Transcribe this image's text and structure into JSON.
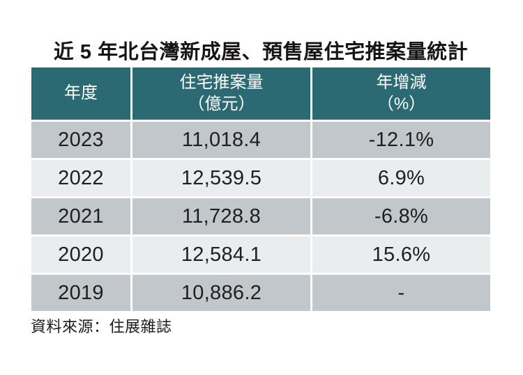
{
  "page": {
    "title": "近 5 年北台灣新成屋、預售屋住宅推案量統計",
    "source": "資料來源：住展雜誌"
  },
  "table": {
    "columns": [
      {
        "line1": "年度",
        "line2": ""
      },
      {
        "line1": "住宅推案量",
        "line2": "（億元）"
      },
      {
        "line1": "年增減",
        "line2": "（%）"
      }
    ],
    "rows": [
      {
        "year": "2023",
        "amount": "11,018.4",
        "change": "-12.1%"
      },
      {
        "year": "2022",
        "amount": "12,539.5",
        "change": "6.9%"
      },
      {
        "year": "2021",
        "amount": "11,728.8",
        "change": "-6.8%"
      },
      {
        "year": "2020",
        "amount": "12,584.1",
        "change": "15.6%"
      },
      {
        "year": "2019",
        "amount": "10,886.2",
        "change": "-"
      }
    ]
  },
  "colors": {
    "header_bg": "#2b6973",
    "header_text": "#ffffff",
    "row_dark": "#c1c7ca",
    "row_light": "#eaedee",
    "body_text": "#1e1e1e"
  },
  "chart_data": {
    "type": "table",
    "title": "近 5 年北台灣新成屋、預售屋住宅推案量統計",
    "columns": [
      "年度",
      "住宅推案量（億元）",
      "年增減（%）"
    ],
    "years": [
      2023,
      2022,
      2021,
      2020,
      2019
    ],
    "launch_volume_billion_twd": [
      11018.4,
      12539.5,
      11728.8,
      12584.1,
      10886.2
    ],
    "yoy_change_percent": [
      -12.1,
      6.9,
      -6.8,
      15.6,
      null
    ],
    "source": "資料來源：住展雜誌"
  }
}
